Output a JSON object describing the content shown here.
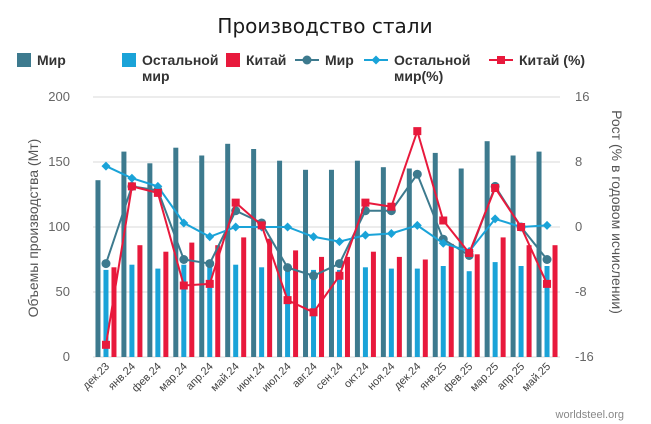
{
  "chart_data": {
    "type": "bar",
    "title": "Производство стали",
    "categories": [
      "дек.23",
      "янв.24",
      "фев.24",
      "мар.24",
      "апр.24",
      "май.24",
      "июн.24",
      "июл.24",
      "авг.24",
      "сен.24",
      "окт.24",
      "ноя.24",
      "дек.24",
      "янв.25",
      "фев.25",
      "мар.25",
      "апр.25",
      "май.25"
    ],
    "bar_series": [
      {
        "name": "Мир",
        "color": "#3d7a8e",
        "values": [
          136,
          158,
          149,
          161,
          155,
          164,
          160,
          151,
          144,
          144,
          151,
          146,
          145,
          157,
          145,
          166,
          155,
          158
        ]
      },
      {
        "name": "Остальной мир",
        "color": "#1aa3d8",
        "values": [
          67,
          71,
          68,
          71,
          70,
          71,
          69,
          68,
          67,
          67,
          69,
          68,
          68,
          70,
          66,
          73,
          70,
          70
        ]
      },
      {
        "name": "Китай",
        "color": "#e8193c",
        "values": [
          69,
          86,
          81,
          88,
          86,
          92,
          91,
          82,
          77,
          77,
          81,
          77,
          75,
          87,
          79,
          92,
          86,
          86
        ]
      }
    ],
    "line_series": [
      {
        "name": "Мир",
        "color": "#3d7a8e",
        "marker": "circle",
        "values": [
          -4.5,
          5.0,
          4.5,
          -4.0,
          -4.5,
          2.0,
          0.5,
          -5.0,
          -6.0,
          -4.5,
          2.0,
          2.0,
          6.5,
          -1.5,
          -3.5,
          5.0,
          0,
          -4.0
        ]
      },
      {
        "name": "Остальной мир(%)",
        "color": "#1aa3d8",
        "marker": "diamond",
        "values": [
          7.5,
          6.0,
          5.0,
          0.5,
          -1.2,
          0,
          0,
          0,
          -1.2,
          -1.8,
          -1.0,
          -0.8,
          0.2,
          -2.0,
          -3.0,
          1.0,
          0,
          0.2
        ]
      },
      {
        "name": "Китай (%)",
        "color": "#e8193c",
        "marker": "square",
        "values": [
          -14.5,
          5.0,
          4.2,
          -7.2,
          -7.0,
          3.0,
          0.2,
          -9.0,
          -10.5,
          -6.0,
          3.0,
          2.5,
          11.8,
          0.8,
          -3.2,
          4.8,
          0,
          -7.0
        ]
      }
    ],
    "ylabel": "Объемы производства (Мт)",
    "y2label": "Рост (% в годовом исчислении)",
    "ylim": [
      0,
      200
    ],
    "y2lim": [
      -16,
      16
    ],
    "yticks": [
      "0",
      "50",
      "100",
      "150",
      "200"
    ],
    "y2ticks": [
      "-16",
      "-8",
      "0",
      "8",
      "16"
    ],
    "grid": true,
    "legend_position": "top",
    "source": "worldsteel.org"
  },
  "legend": [
    {
      "label": "Мир",
      "type": "bar",
      "color": "#3d7a8e"
    },
    {
      "label": "Остальной мир",
      "type": "bar",
      "color": "#1aa3d8"
    },
    {
      "label": "Китай",
      "type": "bar",
      "color": "#e8193c"
    },
    {
      "label": "Мир",
      "type": "line",
      "marker": "circle",
      "color": "#3d7a8e"
    },
    {
      "label": "Остальной мир(%)",
      "type": "line",
      "marker": "diamond",
      "color": "#1aa3d8"
    },
    {
      "label": "Китай (%)",
      "type": "line",
      "marker": "square",
      "color": "#e8193c"
    }
  ]
}
